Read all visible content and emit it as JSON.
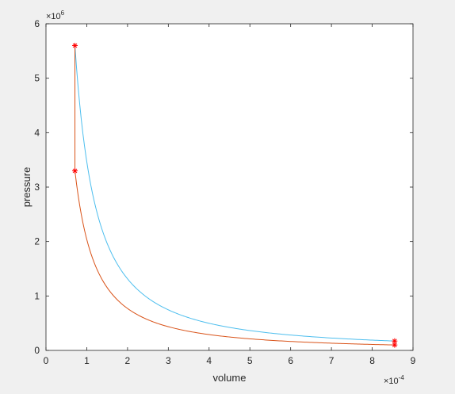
{
  "chart_data": {
    "type": "line",
    "title": "",
    "xlabel": "volume",
    "ylabel": "pressure",
    "x_scale_label": {
      "base": "×10",
      "exp": "-4"
    },
    "y_scale_label": {
      "base": "×10",
      "exp": "6"
    },
    "xlim": [
      0,
      9
    ],
    "ylim": [
      0,
      6
    ],
    "x_ticks": [
      "0",
      "1",
      "2",
      "3",
      "4",
      "5",
      "6",
      "7",
      "8",
      "9"
    ],
    "y_ticks": [
      "0",
      "1",
      "2",
      "3",
      "4",
      "5",
      "6"
    ],
    "grid": false,
    "legend": "none",
    "series": [
      {
        "color": "#4dbeee",
        "curve": "power",
        "from": [
          0.71,
          5.6
        ],
        "to": [
          8.55,
          0.172
        ]
      },
      {
        "color": "#d95319",
        "curve": "power",
        "from": [
          0.71,
          3.3
        ],
        "to": [
          8.55,
          0.1
        ]
      },
      {
        "color": "#d95319",
        "curve": "segment",
        "from": [
          0.71,
          3.3
        ],
        "to": [
          0.71,
          5.6
        ]
      }
    ],
    "markers": {
      "color": "#ff0000",
      "symbol": "asterisk",
      "points": [
        [
          0.71,
          5.6
        ],
        [
          0.71,
          3.3
        ],
        [
          8.55,
          0.172
        ],
        [
          8.55,
          0.1
        ]
      ]
    }
  }
}
